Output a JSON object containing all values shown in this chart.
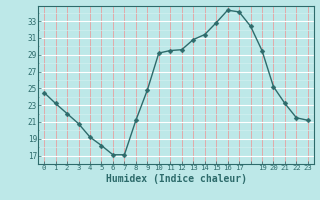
{
  "x": [
    0,
    1,
    2,
    3,
    4,
    5,
    6,
    7,
    8,
    9,
    10,
    11,
    12,
    13,
    14,
    15,
    16,
    17,
    18,
    19,
    20,
    21,
    22,
    23
  ],
  "y": [
    24.5,
    23.2,
    22.0,
    20.8,
    19.2,
    18.2,
    17.1,
    17.1,
    21.2,
    24.8,
    29.2,
    29.5,
    29.6,
    30.8,
    31.4,
    32.8,
    34.3,
    34.1,
    32.4,
    29.5,
    25.2,
    23.2,
    21.5,
    21.2
  ],
  "xtick_positions": [
    0,
    1,
    2,
    3,
    4,
    5,
    6,
    7,
    8,
    9,
    10,
    11,
    12,
    13,
    14,
    15,
    16,
    17,
    18,
    19,
    20,
    21,
    22,
    23
  ],
  "xtick_labels": [
    "0",
    "1",
    "2",
    "3",
    "4",
    "5",
    "6",
    "7",
    "8",
    "9",
    "10",
    "11",
    "12",
    "13",
    "14",
    "15",
    "16",
    "17",
    "",
    "19",
    "20",
    "21",
    "22",
    "23"
  ],
  "ytick_positions": [
    17,
    19,
    21,
    23,
    25,
    27,
    29,
    31,
    33
  ],
  "ytick_labels": [
    "17",
    "19",
    "21",
    "23",
    "25",
    "27",
    "29",
    "31",
    "33"
  ],
  "xlim": [
    -0.5,
    23.5
  ],
  "ylim": [
    16.0,
    34.8
  ],
  "xlabel": "Humidex (Indice chaleur)",
  "line_color": "#2d6b6b",
  "marker": "D",
  "marker_size": 2.5,
  "bg_color": "#bde8e8",
  "grid_major_x_color": "#e8a0a0",
  "grid_major_y_color": "#ffffff",
  "grid_minor_color": "#d0f0f0"
}
